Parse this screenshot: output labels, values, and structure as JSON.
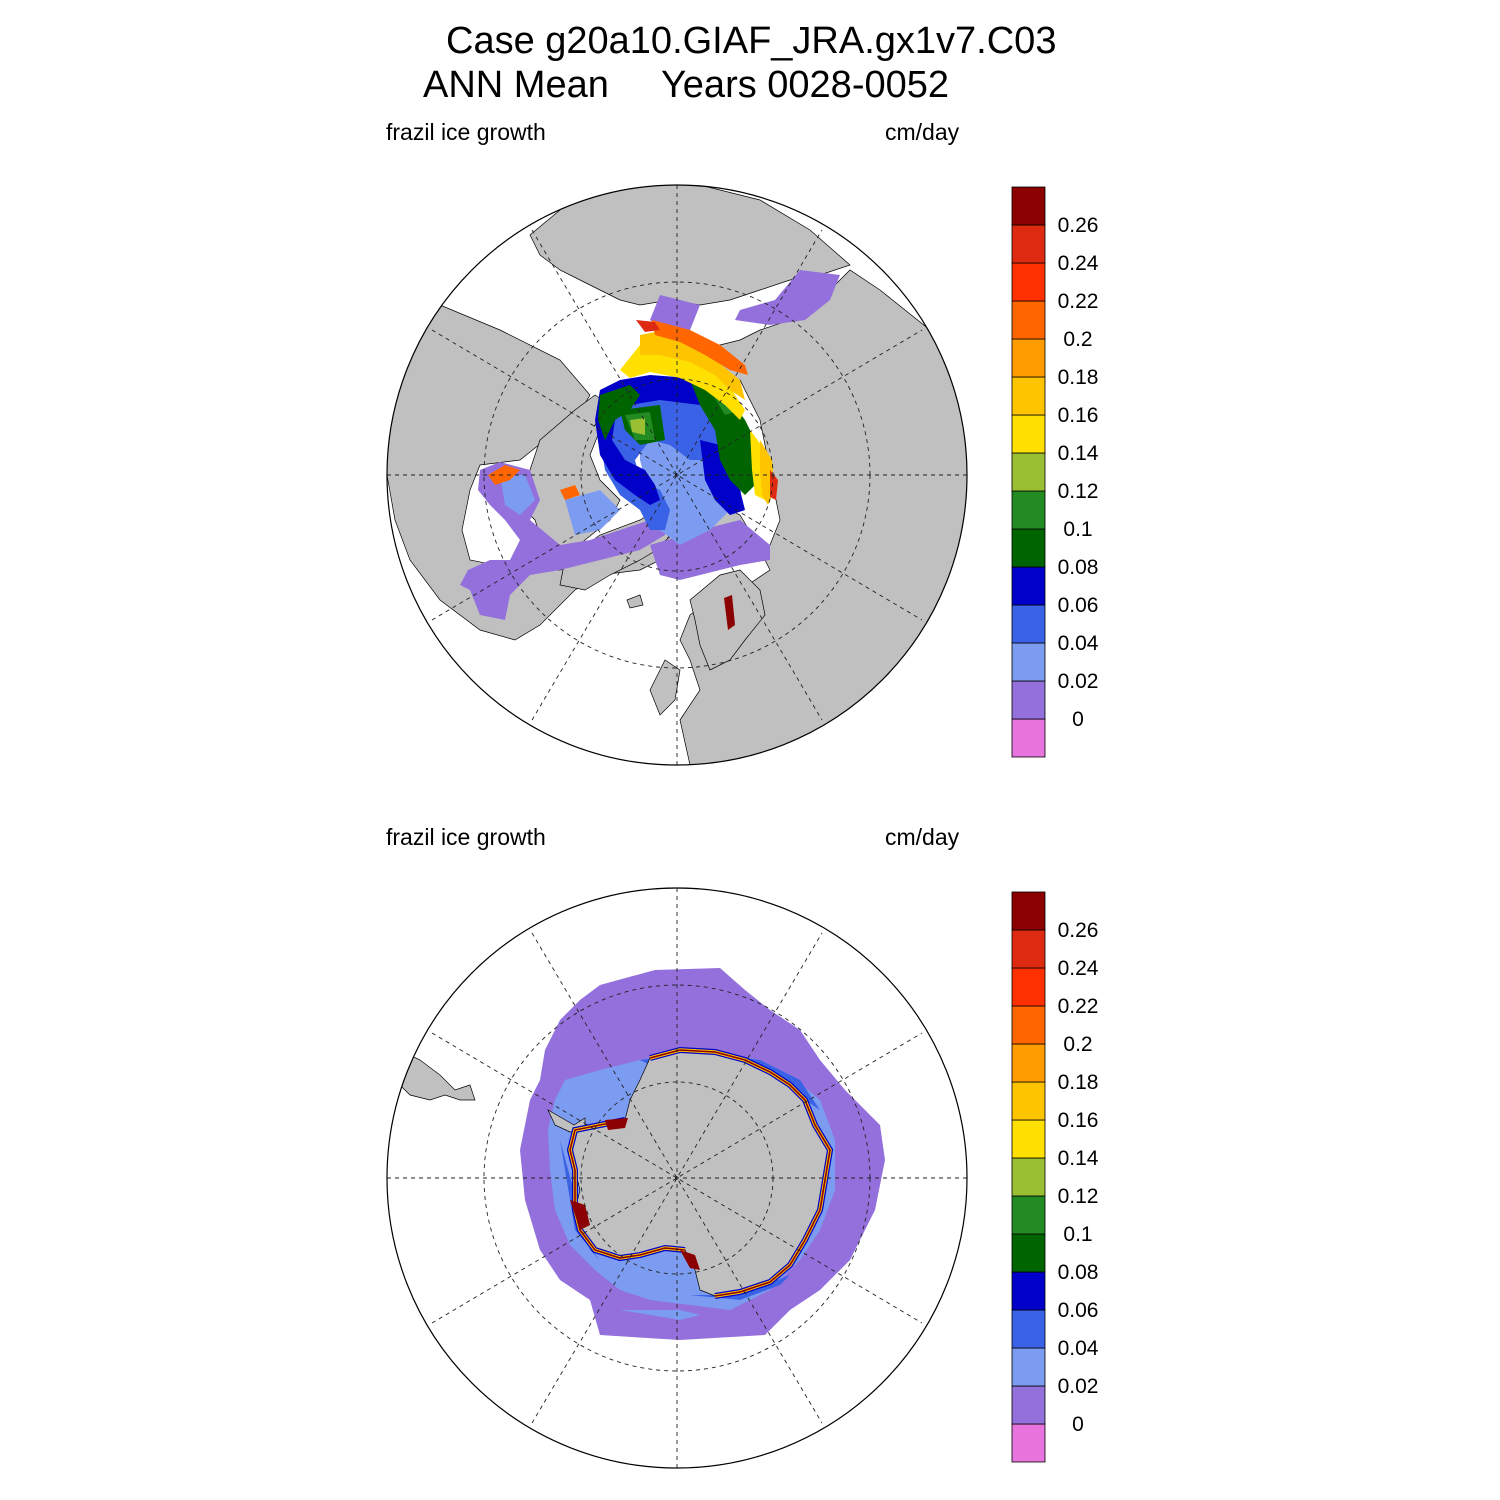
{
  "figure": {
    "title_line1": "Case g20a10.GIAF_JRA.gx1v7.C03",
    "title_line2": "ANN Mean     Years 0028-0052"
  },
  "colors": {
    "land": "#c0c0c0",
    "no_data": "#ffffff",
    "levels": [
      "#e874de",
      "#9370db",
      "#7b9cf0",
      "#3a62e6",
      "#0000c8",
      "#006400",
      "#228b22",
      "#9abf32",
      "#ffe000",
      "#ffc400",
      "#ff9d00",
      "#ff6600",
      "#ff3000",
      "#dd2a10",
      "#8b0000"
    ]
  },
  "panels": [
    {
      "id": "north",
      "hemisphere": "Northern",
      "left_label": "frazil ice growth",
      "right_label": "cm/day",
      "colorbar_ticks": [
        "0",
        "0.02",
        "0.04",
        "0.06",
        "0.08",
        "0.1",
        "0.12",
        "0.14",
        "0.16",
        "0.18",
        "0.2",
        "0.22",
        "0.24",
        "0.26"
      ]
    },
    {
      "id": "south",
      "hemisphere": "Southern",
      "left_label": "frazil ice growth",
      "right_label": "cm/day",
      "colorbar_ticks": [
        "0",
        "0.02",
        "0.04",
        "0.06",
        "0.08",
        "0.1",
        "0.12",
        "0.14",
        "0.16",
        "0.18",
        "0.2",
        "0.22",
        "0.24",
        "0.26"
      ]
    }
  ]
}
